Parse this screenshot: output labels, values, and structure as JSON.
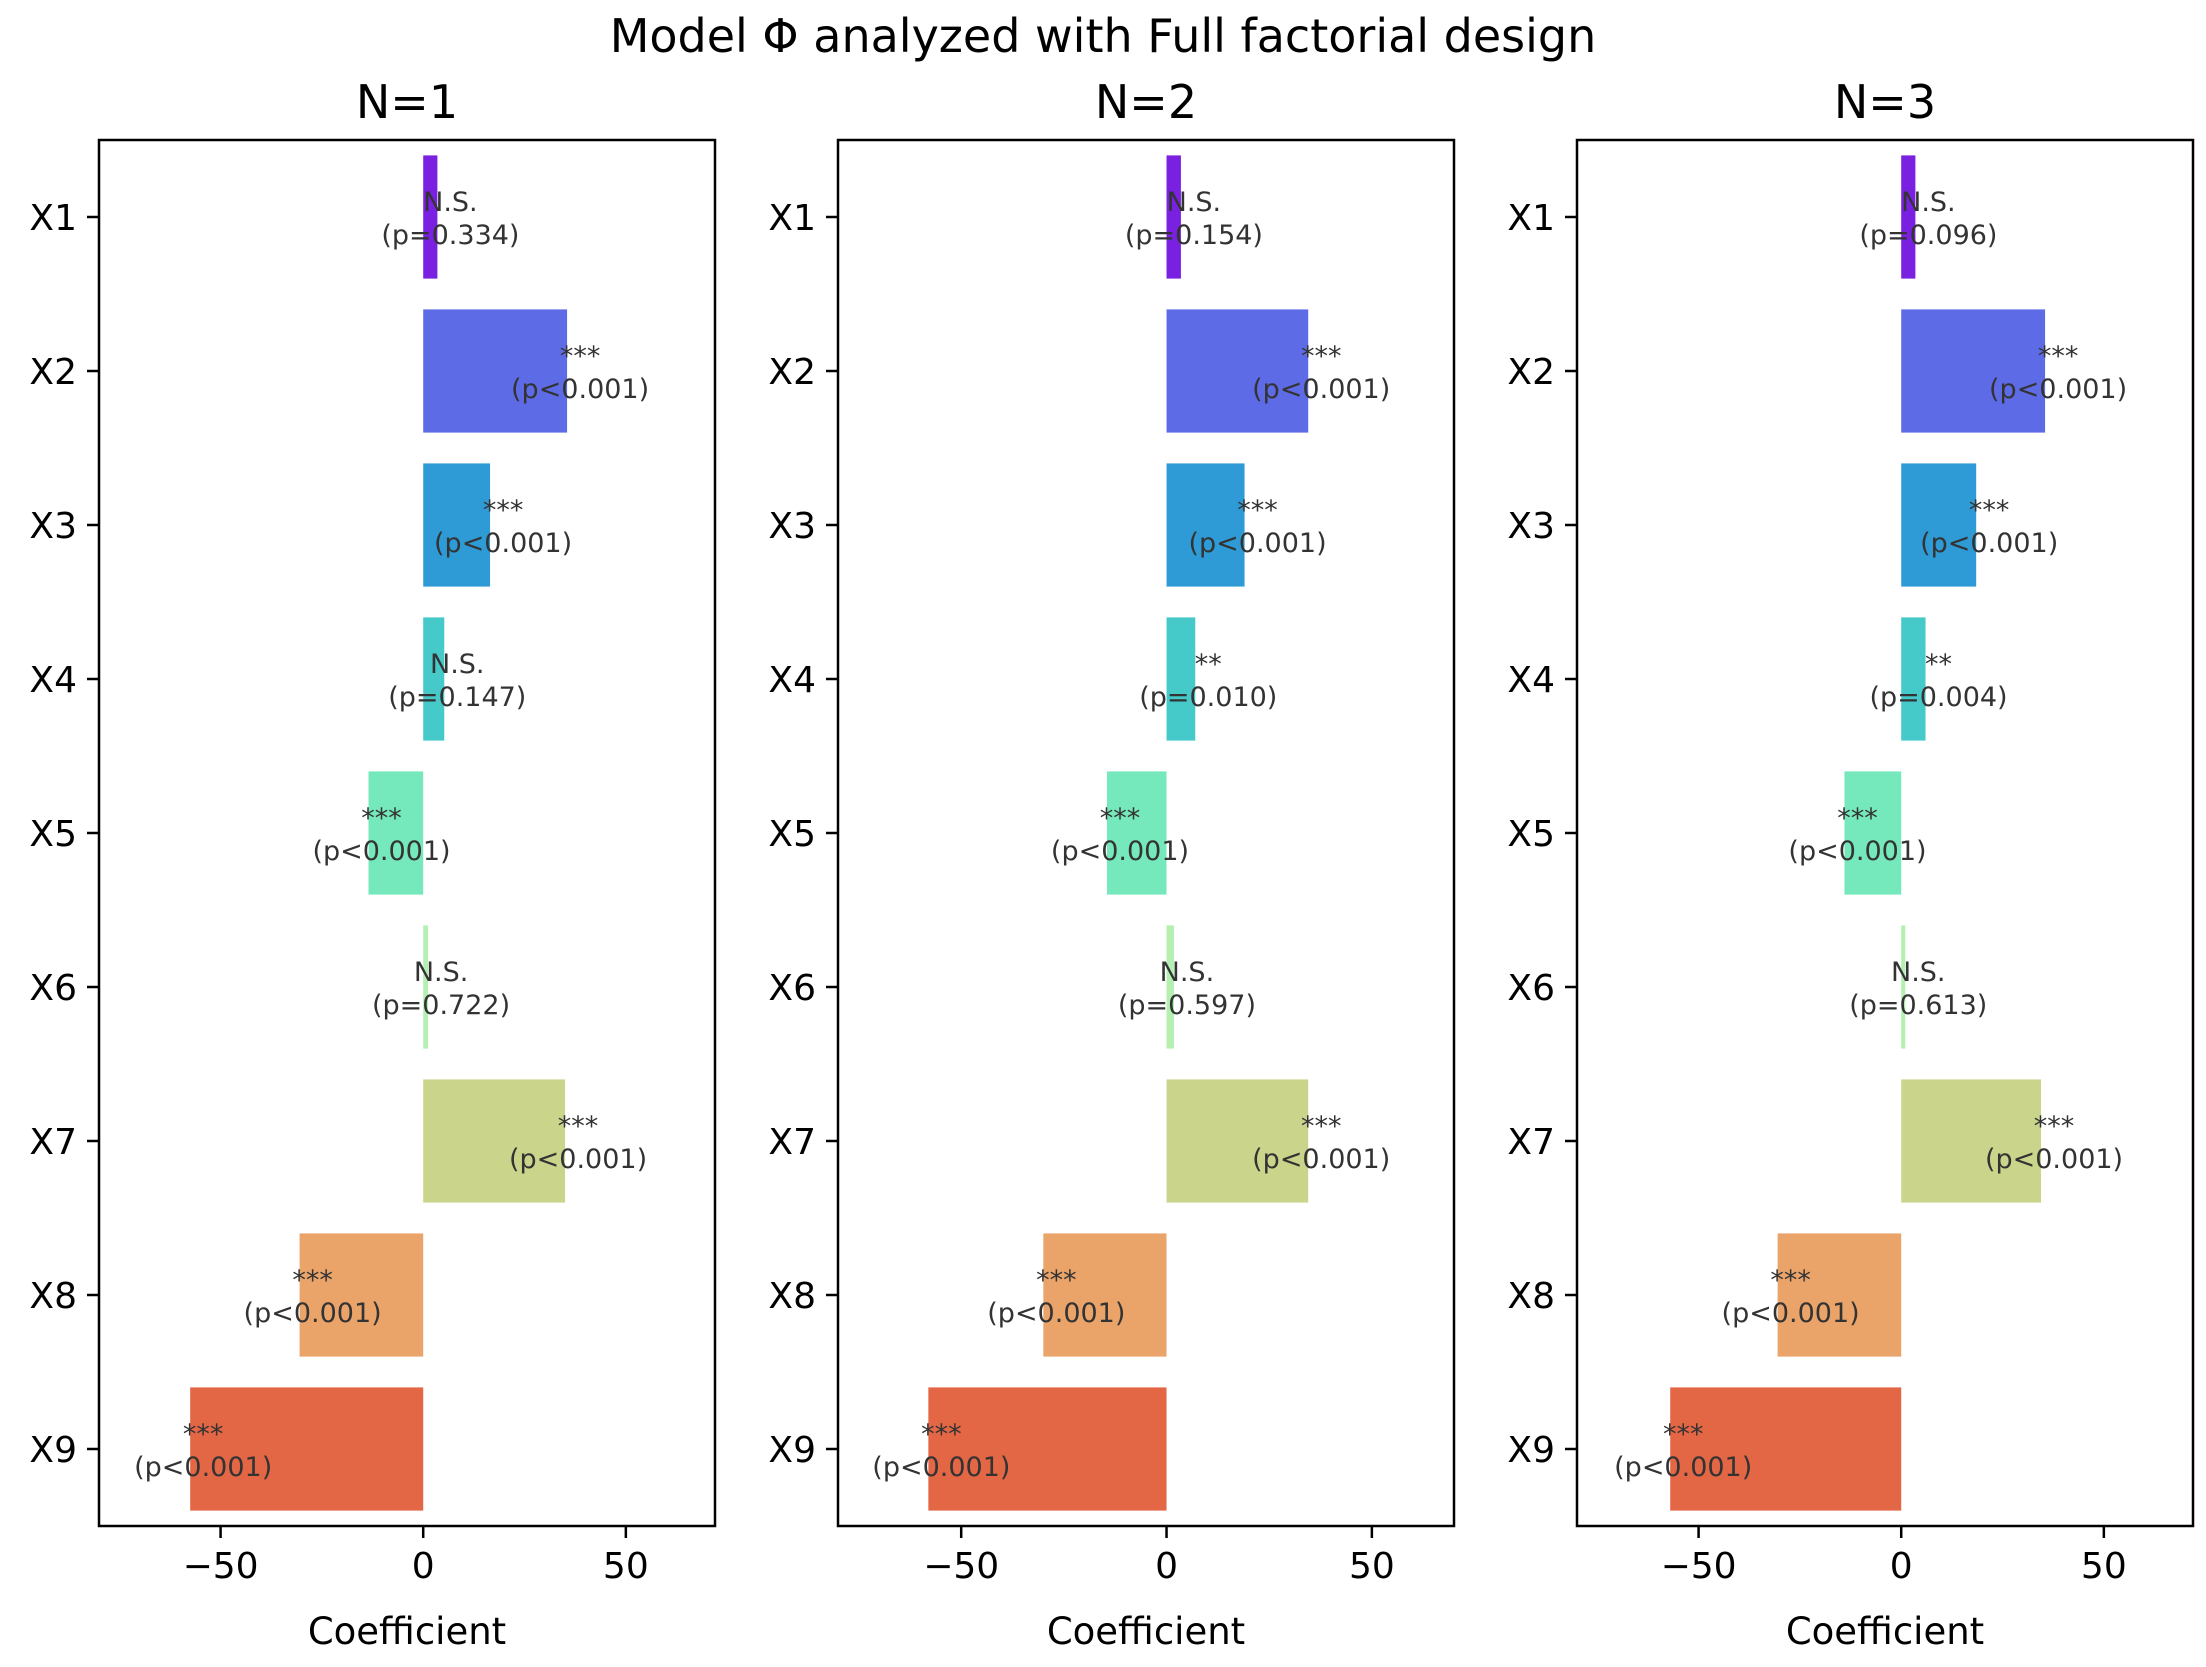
{
  "figure": {
    "title": "Model Φ analyzed with Full factorial design"
  },
  "chart_data": [
    {
      "type": "bar",
      "orientation": "horizontal",
      "title": "N=1",
      "xlabel": "Coefficient",
      "ylabel": "",
      "categories": [
        "X1",
        "X2",
        "X3",
        "X4",
        "X5",
        "X6",
        "X7",
        "X8",
        "X9"
      ],
      "values": [
        3.5,
        35.5,
        16.5,
        5.2,
        -13.5,
        1.2,
        35.0,
        -30.5,
        -57.5
      ],
      "annotations": [
        {
          "sig": "N.S.",
          "p": "(p=0.334)"
        },
        {
          "sig": "***",
          "p": "(p<0.001)"
        },
        {
          "sig": "***",
          "p": "(p<0.001)"
        },
        {
          "sig": "N.S.",
          "p": "(p=0.147)"
        },
        {
          "sig": "***",
          "p": "(p<0.001)"
        },
        {
          "sig": "N.S.",
          "p": "(p=0.722)"
        },
        {
          "sig": "***",
          "p": "(p<0.001)"
        },
        {
          "sig": "***",
          "p": "(p<0.001)"
        },
        {
          "sig": "***",
          "p": "(p<0.001)"
        }
      ],
      "xlim": [
        -80,
        72
      ],
      "xticks": [
        -50,
        0,
        50
      ],
      "xtick_labels": [
        "−50",
        "0",
        "50"
      ],
      "grid": false
    },
    {
      "type": "bar",
      "orientation": "horizontal",
      "title": "N=2",
      "xlabel": "Coefficient",
      "ylabel": "",
      "categories": [
        "X1",
        "X2",
        "X3",
        "X4",
        "X5",
        "X6",
        "X7",
        "X8",
        "X9"
      ],
      "values": [
        3.5,
        34.5,
        19.0,
        7.0,
        -14.5,
        1.8,
        34.5,
        -30.0,
        -58.0
      ],
      "annotations": [
        {
          "sig": "N.S.",
          "p": "(p=0.154)"
        },
        {
          "sig": "***",
          "p": "(p<0.001)"
        },
        {
          "sig": "***",
          "p": "(p<0.001)"
        },
        {
          "sig": "**",
          "p": "(p=0.010)"
        },
        {
          "sig": "***",
          "p": "(p<0.001)"
        },
        {
          "sig": "N.S.",
          "p": "(p=0.597)"
        },
        {
          "sig": "***",
          "p": "(p<0.001)"
        },
        {
          "sig": "***",
          "p": "(p<0.001)"
        },
        {
          "sig": "***",
          "p": "(p<0.001)"
        }
      ],
      "xlim": [
        -80,
        70
      ],
      "xticks": [
        -50,
        0,
        50
      ],
      "xtick_labels": [
        "−50",
        "0",
        "50"
      ],
      "grid": false
    },
    {
      "type": "bar",
      "orientation": "horizontal",
      "title": "N=3",
      "xlabel": "Coefficient",
      "ylabel": "",
      "categories": [
        "X1",
        "X2",
        "X3",
        "X4",
        "X5",
        "X6",
        "X7",
        "X8",
        "X9"
      ],
      "values": [
        3.5,
        35.5,
        18.5,
        6.0,
        -14.0,
        1.0,
        34.5,
        -30.5,
        -57.0
      ],
      "annotations": [
        {
          "sig": "N.S.",
          "p": "(p=0.096)"
        },
        {
          "sig": "***",
          "p": "(p<0.001)"
        },
        {
          "sig": "***",
          "p": "(p<0.001)"
        },
        {
          "sig": "**",
          "p": "(p=0.004)"
        },
        {
          "sig": "***",
          "p": "(p<0.001)"
        },
        {
          "sig": "N.S.",
          "p": "(p=0.613)"
        },
        {
          "sig": "***",
          "p": "(p<0.001)"
        },
        {
          "sig": "***",
          "p": "(p<0.001)"
        },
        {
          "sig": "***",
          "p": "(p<0.001)"
        }
      ],
      "xlim": [
        -80,
        72
      ],
      "xticks": [
        -50,
        0,
        50
      ],
      "xtick_labels": [
        "−50",
        "0",
        "50"
      ],
      "grid": false
    }
  ],
  "colors": {
    "bars": [
      "#7a20e0",
      "#5e6be6",
      "#2e9bd6",
      "#45c9c9",
      "#75e8bc",
      "#b3f0b2",
      "#cbd48b",
      "#eaa46a",
      "#e36645"
    ],
    "axis": "#000000",
    "annotation_text": "#333333"
  }
}
